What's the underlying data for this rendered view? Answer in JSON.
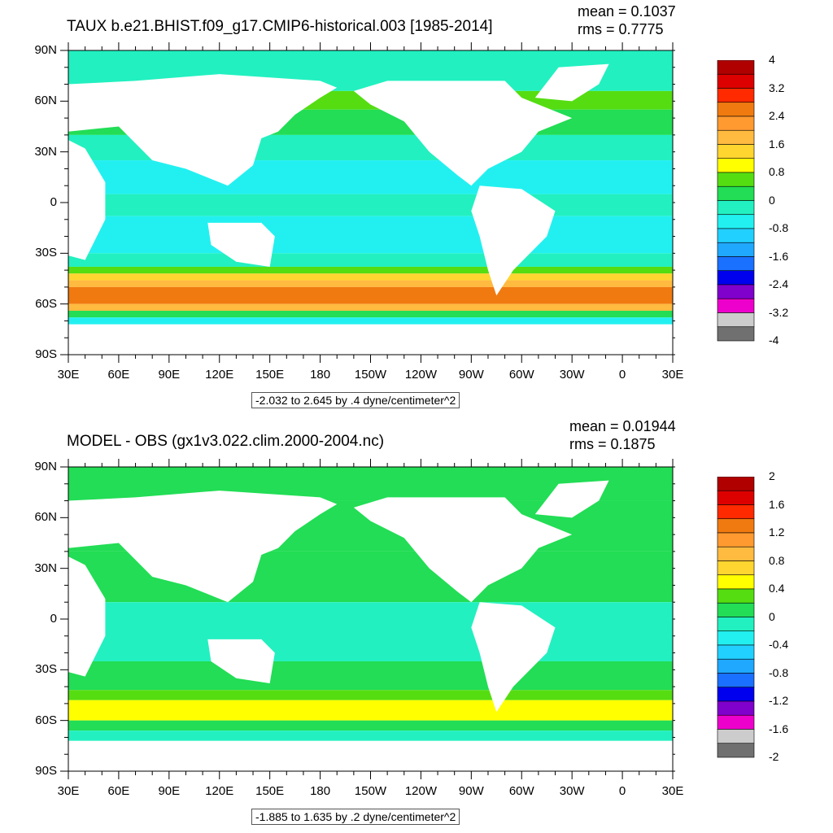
{
  "panels": [
    {
      "title": "TAUX b.e21.BHIST.f09_g17.CMIP6-historical.003 [1985-2014]",
      "mean": "mean = 0.1037",
      "rms": "rms = 0.7775",
      "range_label": "-2.032 to 2.645 by .4 dyne/centimeter^2",
      "colorbar_labels": [
        "4",
        "3.2",
        "2.4",
        "1.6",
        "0.8",
        "0",
        "-0.8",
        "-1.6",
        "-2.4",
        "-3.2",
        "-4"
      ],
      "colorbar_colors": [
        "#b00000",
        "#dd0000",
        "#ff2a00",
        "#f07a10",
        "#ff9a30",
        "#ffba40",
        "#ffd530",
        "#ffff00",
        "#55dd11",
        "#22dd55",
        "#22f0c0",
        "#22f0f0",
        "#22d0ff",
        "#20a8ff",
        "#1a70ff",
        "#0000ee",
        "#8000cc",
        "#ee00cc",
        "#cccccc",
        "#707070"
      ],
      "field": {
        "type": "zonal_wind_stress",
        "bands": [
          {
            "lat_from": 90,
            "lat_to": 66,
            "color": "#22f0c0"
          },
          {
            "lat_from": 66,
            "lat_to": 55,
            "color": "#55dd11"
          },
          {
            "lat_from": 55,
            "lat_to": 40,
            "color": "#22dd55"
          },
          {
            "lat_from": 40,
            "lat_to": 25,
            "color": "#22f0c0"
          },
          {
            "lat_from": 25,
            "lat_to": 5,
            "color": "#22f0f0"
          },
          {
            "lat_from": 5,
            "lat_to": -8,
            "color": "#22f0c0"
          },
          {
            "lat_from": -8,
            "lat_to": -30,
            "color": "#22f0f0"
          },
          {
            "lat_from": -30,
            "lat_to": -38,
            "color": "#22f0c0"
          },
          {
            "lat_from": -38,
            "lat_to": -42,
            "color": "#55dd11"
          },
          {
            "lat_from": -42,
            "lat_to": -46,
            "color": "#ffd530"
          },
          {
            "lat_from": -46,
            "lat_to": -50,
            "color": "#ffba40"
          },
          {
            "lat_from": -50,
            "lat_to": -60,
            "color": "#f07a10"
          },
          {
            "lat_from": -60,
            "lat_to": -64,
            "color": "#ffba40"
          },
          {
            "lat_from": -64,
            "lat_to": -68,
            "color": "#22dd55"
          },
          {
            "lat_from": -68,
            "lat_to": -78,
            "color": "#22f0f0"
          }
        ]
      }
    },
    {
      "title": "MODEL - OBS (gx1v3.022.clim.2000-2004.nc)",
      "mean": "mean = 0.01944",
      "rms": "rms = 0.1875",
      "range_label": "-1.885 to 1.635 by .2 dyne/centimeter^2",
      "colorbar_labels": [
        "2",
        "1.6",
        "1.2",
        "0.8",
        "0.4",
        "0",
        "-0.4",
        "-0.8",
        "-1.2",
        "-1.6",
        "-2"
      ],
      "colorbar_colors": [
        "#b00000",
        "#dd0000",
        "#ff2a00",
        "#f07a10",
        "#ff9a30",
        "#ffba40",
        "#ffd530",
        "#ffff00",
        "#55dd11",
        "#22dd55",
        "#22f0c0",
        "#22f0f0",
        "#22d0ff",
        "#20a8ff",
        "#1a70ff",
        "#0000ee",
        "#8000cc",
        "#ee00cc",
        "#cccccc",
        "#707070"
      ],
      "field": {
        "type": "model_minus_obs",
        "bands": [
          {
            "lat_from": 90,
            "lat_to": 70,
            "color": "#22dd55"
          },
          {
            "lat_from": 70,
            "lat_to": 40,
            "color": "#22dd55"
          },
          {
            "lat_from": 40,
            "lat_to": 10,
            "color": "#22dd55"
          },
          {
            "lat_from": 10,
            "lat_to": -25,
            "color": "#22f0c0"
          },
          {
            "lat_from": -25,
            "lat_to": -42,
            "color": "#22dd55"
          },
          {
            "lat_from": -42,
            "lat_to": -48,
            "color": "#55dd11"
          },
          {
            "lat_from": -48,
            "lat_to": -60,
            "color": "#ffff00"
          },
          {
            "lat_from": -60,
            "lat_to": -66,
            "color": "#22dd55"
          },
          {
            "lat_from": -66,
            "lat_to": -78,
            "color": "#22f0c0"
          }
        ]
      }
    }
  ],
  "axes": {
    "lat_labels": [
      "90N",
      "60N",
      "30N",
      "0",
      "30S",
      "60S",
      "90S"
    ],
    "lon_labels": [
      "30E",
      "60E",
      "90E",
      "120E",
      "150E",
      "180",
      "150W",
      "120W",
      "90W",
      "60W",
      "30W",
      "0",
      "30E"
    ]
  },
  "colors": {
    "land": "#ffffff",
    "frame": "#000000"
  }
}
